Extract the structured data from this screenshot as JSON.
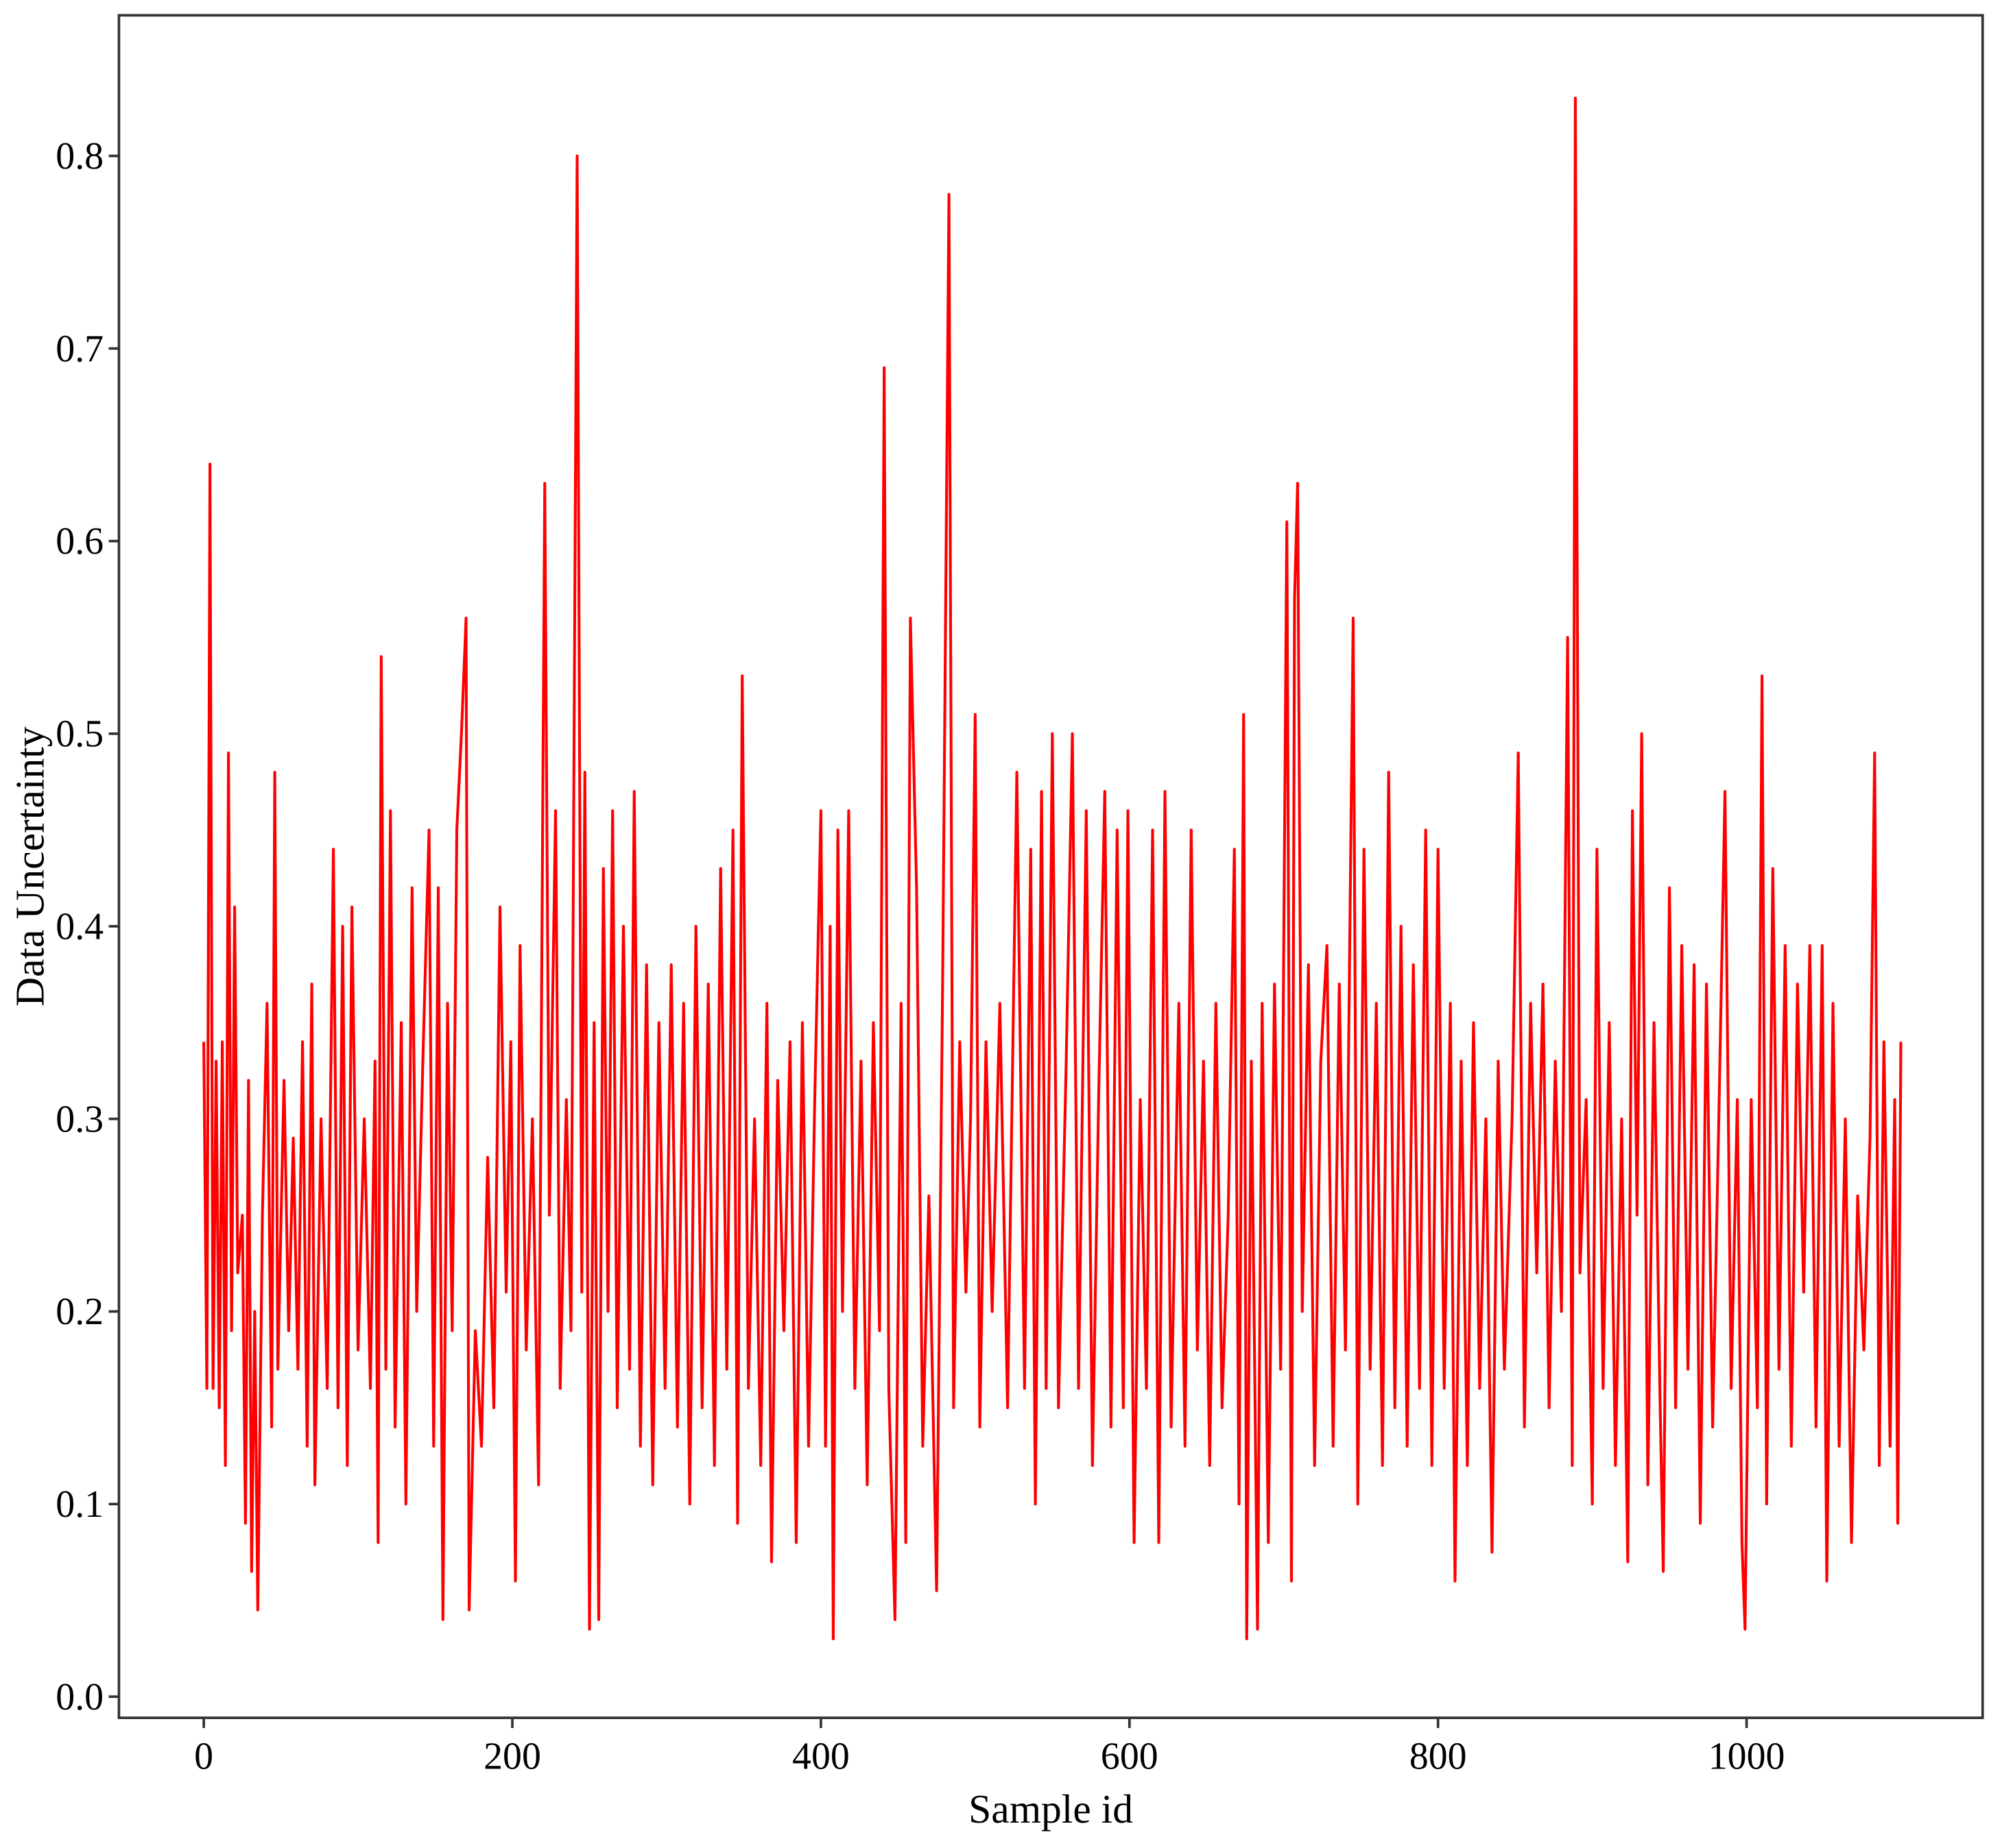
{
  "chart_data": {
    "type": "line",
    "xlabel": "Sample id",
    "ylabel": "Data Uncertainty",
    "xlim": [
      -55,
      1153
    ],
    "ylim": [
      -0.011,
      0.873
    ],
    "xticks": [
      0,
      200,
      400,
      600,
      800,
      1000
    ],
    "yticks": [
      {
        "value": 0,
        "label": "0.0"
      },
      0.1,
      0.2,
      0.3,
      0.4,
      0.5,
      0.6,
      0.7,
      0.8
    ],
    "series": [
      {
        "color": "#ff0000",
        "x": [
          0,
          2,
          4,
          6,
          8,
          10,
          12,
          14,
          16,
          18,
          20,
          22,
          25,
          27,
          29,
          31,
          33,
          35,
          38,
          41,
          44,
          46,
          48,
          52,
          55,
          58,
          61,
          64,
          67,
          70,
          72,
          76,
          80,
          84,
          87,
          90,
          93,
          96,
          100,
          104,
          108,
          111,
          113,
          115,
          118,
          121,
          124,
          128,
          131,
          135,
          138,
          142,
          146,
          149,
          152,
          155,
          158,
          161,
          164,
          167,
          170,
          172,
          176,
          180,
          184,
          188,
          192,
          196,
          199,
          202,
          205,
          209,
          213,
          217,
          221,
          224,
          228,
          231,
          235,
          238,
          242,
          245,
          247,
          250,
          253,
          256,
          259,
          262,
          265,
          268,
          272,
          276,
          279,
          283,
          287,
          291,
          295,
          299,
          303,
          307,
          311,
          315,
          319,
          323,
          327,
          331,
          335,
          339,
          343,
          346,
          349,
          353,
          357,
          361,
          365,
          368,
          372,
          376,
          380,
          384,
          388,
          392,
          396,
          400,
          403,
          406,
          408,
          411,
          414,
          418,
          422,
          426,
          430,
          434,
          438,
          441,
          444,
          448,
          452,
          455,
          458,
          462,
          466,
          470,
          475,
          479,
          483,
          486,
          490,
          494,
          497,
          500,
          503,
          507,
          511,
          516,
          521,
          527,
          532,
          536,
          539,
          543,
          546,
          550,
          554,
          559,
          563,
          567,
          572,
          576,
          580,
          584,
          588,
          592,
          596,
          599,
          603,
          607,
          611,
          615,
          619,
          623,
          627,
          632,
          636,
          640,
          644,
          648,
          652,
          656,
          660,
          664,
          668,
          671,
          674,
          676,
          679,
          683,
          686,
          690,
          694,
          698,
          702,
          705,
          707,
          709,
          712,
          716,
          720,
          724,
          728,
          732,
          736,
          740,
          745,
          748,
          752,
          756,
          760,
          764,
          768,
          772,
          776,
          780,
          784,
          788,
          792,
          796,
          800,
          804,
          808,
          811,
          815,
          819,
          823,
          827,
          831,
          835,
          839,
          843,
          848,
          852,
          856,
          860,
          864,
          868,
          872,
          876,
          880,
          884,
          887,
          889,
          892,
          896,
          900,
          903,
          907,
          911,
          915,
          919,
          923,
          926,
          929,
          932,
          936,
          940,
          944,
          946,
          950,
          954,
          958,
          962,
          966,
          970,
          974,
          978,
          982,
          986,
          990,
          994,
          997,
          999,
          1003,
          1007,
          1010,
          1013,
          1017,
          1021,
          1025,
          1029,
          1033,
          1037,
          1041,
          1045,
          1049,
          1052,
          1056,
          1060,
          1064,
          1068,
          1072,
          1076,
          1080,
          1083,
          1086,
          1089,
          1093,
          1096,
          1098,
          1100
        ],
        "values": [
          0.34,
          0.16,
          0.64,
          0.16,
          0.33,
          0.15,
          0.34,
          0.12,
          0.49,
          0.19,
          0.41,
          0.22,
          0.25,
          0.09,
          0.32,
          0.065,
          0.2,
          0.045,
          0.25,
          0.36,
          0.14,
          0.48,
          0.17,
          0.32,
          0.19,
          0.29,
          0.17,
          0.34,
          0.13,
          0.37,
          0.11,
          0.3,
          0.16,
          0.44,
          0.15,
          0.4,
          0.12,
          0.41,
          0.18,
          0.3,
          0.16,
          0.33,
          0.08,
          0.54,
          0.17,
          0.46,
          0.14,
          0.35,
          0.1,
          0.42,
          0.2,
          0.33,
          0.45,
          0.13,
          0.42,
          0.04,
          0.36,
          0.19,
          0.45,
          0.5,
          0.56,
          0.045,
          0.19,
          0.13,
          0.28,
          0.15,
          0.41,
          0.21,
          0.34,
          0.06,
          0.39,
          0.18,
          0.3,
          0.11,
          0.63,
          0.25,
          0.46,
          0.16,
          0.31,
          0.19,
          0.8,
          0.21,
          0.48,
          0.035,
          0.35,
          0.04,
          0.43,
          0.2,
          0.46,
          0.15,
          0.4,
          0.17,
          0.47,
          0.13,
          0.38,
          0.11,
          0.35,
          0.16,
          0.38,
          0.14,
          0.36,
          0.1,
          0.4,
          0.15,
          0.37,
          0.12,
          0.43,
          0.17,
          0.45,
          0.09,
          0.53,
          0.16,
          0.3,
          0.12,
          0.36,
          0.07,
          0.32,
          0.19,
          0.34,
          0.08,
          0.35,
          0.13,
          0.31,
          0.46,
          0.13,
          0.4,
          0.03,
          0.45,
          0.2,
          0.46,
          0.16,
          0.33,
          0.11,
          0.35,
          0.19,
          0.69,
          0.16,
          0.04,
          0.36,
          0.08,
          0.56,
          0.42,
          0.13,
          0.26,
          0.055,
          0.38,
          0.78,
          0.15,
          0.34,
          0.21,
          0.3,
          0.51,
          0.14,
          0.34,
          0.2,
          0.36,
          0.15,
          0.48,
          0.16,
          0.44,
          0.1,
          0.47,
          0.16,
          0.5,
          0.15,
          0.33,
          0.5,
          0.16,
          0.46,
          0.12,
          0.31,
          0.47,
          0.14,
          0.45,
          0.15,
          0.46,
          0.08,
          0.31,
          0.16,
          0.45,
          0.08,
          0.47,
          0.14,
          0.36,
          0.13,
          0.45,
          0.18,
          0.33,
          0.12,
          0.36,
          0.15,
          0.25,
          0.44,
          0.1,
          0.51,
          0.03,
          0.33,
          0.035,
          0.36,
          0.08,
          0.37,
          0.17,
          0.61,
          0.06,
          0.57,
          0.63,
          0.2,
          0.38,
          0.12,
          0.33,
          0.39,
          0.13,
          0.37,
          0.18,
          0.56,
          0.1,
          0.44,
          0.17,
          0.36,
          0.12,
          0.48,
          0.15,
          0.4,
          0.13,
          0.38,
          0.16,
          0.45,
          0.12,
          0.44,
          0.16,
          0.36,
          0.06,
          0.33,
          0.12,
          0.35,
          0.16,
          0.3,
          0.075,
          0.33,
          0.17,
          0.3,
          0.49,
          0.14,
          0.36,
          0.22,
          0.37,
          0.15,
          0.33,
          0.2,
          0.55,
          0.12,
          0.83,
          0.22,
          0.31,
          0.1,
          0.44,
          0.16,
          0.35,
          0.12,
          0.3,
          0.07,
          0.46,
          0.25,
          0.5,
          0.11,
          0.35,
          0.15,
          0.065,
          0.42,
          0.15,
          0.39,
          0.17,
          0.38,
          0.09,
          0.37,
          0.14,
          0.3,
          0.47,
          0.16,
          0.31,
          0.08,
          0.035,
          0.31,
          0.15,
          0.53,
          0.1,
          0.43,
          0.17,
          0.39,
          0.13,
          0.37,
          0.21,
          0.39,
          0.14,
          0.39,
          0.06,
          0.36,
          0.13,
          0.3,
          0.08,
          0.26,
          0.18,
          0.29,
          0.49,
          0.12,
          0.34,
          0.13,
          0.31,
          0.09,
          0.34
        ]
      }
    ]
  }
}
